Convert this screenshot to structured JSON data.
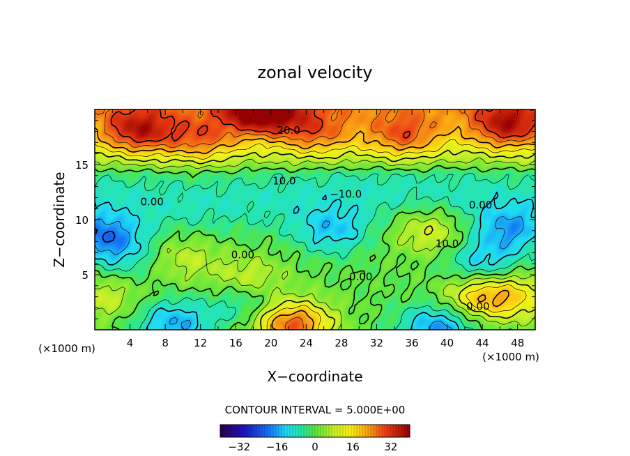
{
  "chart_data": {
    "type": "heatmap",
    "title": "zonal velocity",
    "xlabel": "X−coordinate",
    "ylabel": "Z−coordinate",
    "x_unit_left": "(×1000 m)",
    "x_unit_right": "(×1000 m)",
    "xlim": [
      0,
      50
    ],
    "ylim": [
      0,
      20
    ],
    "x_ticks": [
      4,
      8,
      12,
      16,
      20,
      24,
      28,
      32,
      36,
      40,
      44,
      48
    ],
    "y_ticks": [
      5,
      10,
      15
    ],
    "contour_interval_label": "CONTOUR INTERVAL = 5.000E+00",
    "contour_labels": [
      {
        "text": "20.0",
        "x": 22.0,
        "y": 17.8
      },
      {
        "text": "10.0",
        "x": 21.5,
        "y": 13.2
      },
      {
        "text": "−10.0",
        "x": 28.5,
        "y": 12.0
      },
      {
        "text": "0.00",
        "x": 6.5,
        "y": 11.3
      },
      {
        "text": "0.00",
        "x": 16.8,
        "y": 6.5
      },
      {
        "text": "0.00",
        "x": 30.2,
        "y": 4.5
      },
      {
        "text": "0.00",
        "x": 43.8,
        "y": 11.0
      },
      {
        "text": "10.0",
        "x": 40.0,
        "y": 7.5
      },
      {
        "text": "0.00",
        "x": 43.5,
        "y": 1.8
      }
    ],
    "colorbar": {
      "range": [
        -40,
        40
      ],
      "tick_labels": [
        "−32",
        "−16",
        "0",
        "16",
        "32"
      ],
      "tick_values": [
        -32,
        -16,
        0,
        16,
        32
      ]
    },
    "features": [
      {
        "x": 19,
        "z": 20,
        "value": 34
      },
      {
        "x": 5,
        "z": 18,
        "value": 24
      },
      {
        "x": 47,
        "z": 18.5,
        "value": 24
      },
      {
        "x": 35,
        "z": 17.5,
        "value": 17
      },
      {
        "x": 27,
        "z": 9,
        "value": -14
      },
      {
        "x": 1,
        "z": 8.5,
        "value": -20
      },
      {
        "x": 47,
        "z": 9,
        "value": -16
      },
      {
        "x": 44,
        "z": 6,
        "value": -14
      },
      {
        "x": 38,
        "z": 9,
        "value": 13
      },
      {
        "x": 22.5,
        "z": 0.5,
        "value": 33
      },
      {
        "x": 9,
        "z": 0.5,
        "value": -18
      },
      {
        "x": 39,
        "z": 0.2,
        "value": -20
      },
      {
        "x": 17,
        "z": 2.5,
        "value": -10
      },
      {
        "x": 17.5,
        "z": 4.6,
        "value": 11
      },
      {
        "x": 44,
        "z": 3,
        "value": 22
      },
      {
        "x": 10,
        "z": 6.5,
        "value": 9
      },
      {
        "x": 0.8,
        "z": 3,
        "value": 10
      },
      {
        "x": 48.5,
        "z": 3,
        "value": 13
      },
      {
        "x": 3.5,
        "z": 6.5,
        "value": -8
      },
      {
        "x": 25,
        "z": 17.8,
        "value": 15
      },
      {
        "x": 12,
        "z": 17.2,
        "value": 16
      }
    ]
  }
}
